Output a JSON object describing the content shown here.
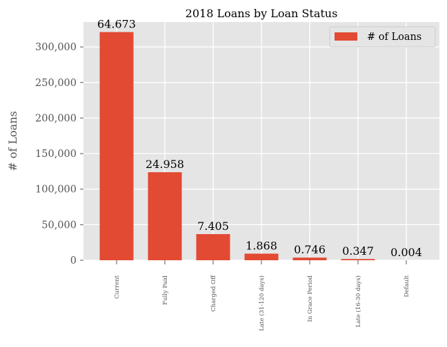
{
  "chart_data": {
    "type": "bar",
    "title": "2018 Loans by Loan Status",
    "xlabel": "",
    "ylabel": "# of Loans",
    "categories": [
      "Current",
      "Fully Paid",
      "Charged Off",
      "Late (31-120 days)",
      "In Grace Period",
      "Late (16-30 days)",
      "Default"
    ],
    "series": [
      {
        "name": "# of Loans",
        "values": [
          320900,
          123800,
          36750,
          9270,
          3700,
          1720,
          20
        ],
        "labels": [
          "64.673",
          "24.958",
          "7.405",
          "1.868",
          "0.746",
          "0.347",
          "0.004"
        ]
      }
    ],
    "ylim": [
      0,
      335000
    ],
    "yticks": [
      0,
      50000,
      100000,
      150000,
      200000,
      250000,
      300000
    ],
    "ytick_labels": [
      "0",
      "50,000",
      "100,000",
      "150,000",
      "200,000",
      "250,000",
      "300,000"
    ],
    "grid": true,
    "legend_position": "top-right",
    "colors": {
      "bar": "#E24A33",
      "plot_bg": "#E5E5E5",
      "grid": "#FFFFFF",
      "tick_text": "#555555"
    }
  }
}
